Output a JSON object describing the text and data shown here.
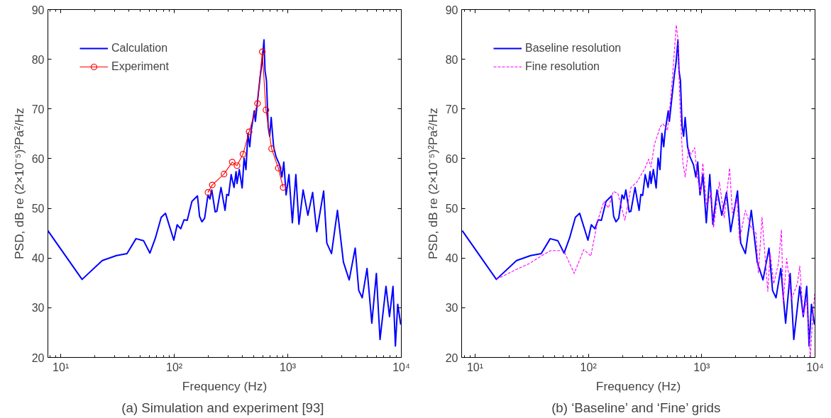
{
  "chart_data": [
    {
      "type": "line",
      "title": "(a)  Simulation and experiment [93]",
      "xlabel": "Frequency (Hz)",
      "ylabel": "PSD, dB re (2×10⁻⁵)²Pa²/Hz",
      "log": "x",
      "grid": false,
      "legend": "top left",
      "xlim": [
        7.7,
        10000
      ],
      "ylim": [
        20,
        90
      ],
      "xticks": [
        {
          "value": 10,
          "label": "10¹"
        },
        {
          "value": 100,
          "label": "10²"
        },
        {
          "value": 1000,
          "label": "10³"
        },
        {
          "value": 10000,
          "label": "10⁴"
        }
      ],
      "yticks": [
        20,
        30,
        40,
        50,
        60,
        70,
        80,
        90
      ],
      "series": [
        {
          "name": "Calculation",
          "color": "#0000ff",
          "marker": "none",
          "line_style": "solid",
          "x": [
            7.7,
            15.4,
            23.2,
            30.9,
            38.3,
            46,
            53.6,
            61,
            68.1,
            76.7,
            83.7,
            99,
            106,
            114,
            122,
            130,
            143,
            160,
            167,
            175,
            185,
            198,
            206,
            214,
            229,
            237,
            258,
            280,
            290,
            301,
            317,
            336,
            350,
            357,
            374,
            396,
            412,
            428,
            445,
            462,
            475,
            506,
            518,
            550,
            572,
            593,
            617,
            630,
            649,
            671,
            692,
            714,
            750,
            787,
            845,
            887,
            922,
            966,
            1024,
            1097,
            1178,
            1253,
            1365,
            1503,
            1655,
            1800,
            2070,
            2207,
            2427,
            2738,
            3090,
            3474,
            3924,
            4217,
            4525,
            4990,
            5500,
            6030,
            6494,
            7330,
            7870,
            8450,
            8870,
            9300,
            9880
          ],
          "values": [
            45.5,
            35.7,
            39.5,
            40.5,
            40.9,
            43.9,
            43.5,
            41,
            44,
            48.2,
            49,
            43.6,
            46.7,
            45.9,
            47.7,
            47.6,
            51.4,
            52.5,
            48.4,
            47.3,
            48,
            52.7,
            51.9,
            53.7,
            49.3,
            49.4,
            54.2,
            49.6,
            52.8,
            52.6,
            56.8,
            54.2,
            57.4,
            55,
            57.8,
            54.1,
            60.1,
            57.8,
            65.1,
            62.4,
            65.5,
            69.6,
            67.5,
            73.1,
            76.7,
            79.3,
            83.9,
            77.7,
            75.7,
            66.5,
            64.5,
            68.3,
            62.4,
            60.4,
            58.8,
            56.3,
            59.3,
            52.7,
            56.8,
            47.1,
            56.8,
            46.8,
            53.7,
            48.6,
            53.2,
            45.3,
            53.5,
            43,
            40.9,
            49.6,
            39.2,
            35.6,
            42,
            33.5,
            32,
            37.9,
            26.9,
            36.9,
            23.6,
            34.3,
            28.2,
            34.3,
            22.3,
            30.7,
            26.6
          ]
        },
        {
          "name": "Experiment",
          "color": "#ff0000",
          "marker": "circle",
          "line_style": "solid",
          "x": [
            198,
            216,
            274,
            324,
            357,
            403,
            456,
            541,
            596,
            642,
            720,
            825,
            910
          ],
          "values": [
            53.2,
            54.7,
            56.9,
            59.3,
            58.6,
            60.9,
            65.4,
            71.1,
            81.5,
            69.8,
            62,
            58.1,
            54.2
          ]
        }
      ]
    },
    {
      "type": "line",
      "title": "(b)  ‘Baseline’ and ‘Fine’ grids",
      "xlabel": "Frequency (Hz)",
      "ylabel": "PSD, dB re (2×10⁻⁵)²Pa²/Hz",
      "log": "x",
      "grid": false,
      "legend": "top left",
      "xlim": [
        7.6,
        10000
      ],
      "ylim": [
        20,
        90
      ],
      "xticks": [
        {
          "value": 10,
          "label": "10¹"
        },
        {
          "value": 100,
          "label": "10²"
        },
        {
          "value": 1000,
          "label": "10³"
        },
        {
          "value": 10000,
          "label": "10⁴"
        }
      ],
      "yticks": [
        20,
        30,
        40,
        50,
        60,
        70,
        80,
        90
      ],
      "series": [
        {
          "name": "Baseline resolution",
          "color": "#0000ff",
          "marker": "none",
          "line_style": "solid",
          "x": [
            7.7,
            15.4,
            23.2,
            30.9,
            38.3,
            46,
            53.6,
            61,
            68.1,
            76.7,
            83.7,
            99,
            106,
            114,
            122,
            130,
            143,
            160,
            167,
            175,
            185,
            198,
            206,
            214,
            229,
            237,
            258,
            280,
            290,
            301,
            317,
            336,
            350,
            357,
            374,
            396,
            412,
            428,
            445,
            462,
            475,
            506,
            518,
            550,
            572,
            593,
            617,
            630,
            649,
            671,
            692,
            714,
            750,
            787,
            845,
            887,
            922,
            966,
            1024,
            1097,
            1178,
            1253,
            1365,
            1503,
            1655,
            1800,
            2070,
            2207,
            2427,
            2738,
            3090,
            3474,
            3924,
            4217,
            4525,
            4990,
            5500,
            6030,
            6494,
            7330,
            7870,
            8450,
            8870,
            9300,
            9880
          ],
          "values": [
            45.5,
            35.7,
            39.5,
            40.5,
            40.9,
            43.9,
            43.5,
            41,
            44,
            48.2,
            49,
            43.6,
            46.7,
            45.9,
            47.7,
            47.6,
            51.4,
            52.5,
            48.4,
            47.3,
            48,
            52.7,
            51.9,
            53.7,
            49.3,
            49.4,
            54.2,
            49.6,
            52.8,
            52.6,
            56.8,
            54.2,
            57.4,
            55,
            57.8,
            54.1,
            60.1,
            57.8,
            65.1,
            62.4,
            65.5,
            69.6,
            67.5,
            73.1,
            76.7,
            79.3,
            83.9,
            77.7,
            75.7,
            66.5,
            64.5,
            68.3,
            62.4,
            60.4,
            58.8,
            56.3,
            59.3,
            52.7,
            56.8,
            47.1,
            56.8,
            46.8,
            53.7,
            48.6,
            53.2,
            45.3,
            53.5,
            43,
            40.9,
            49.6,
            39.2,
            35.6,
            42,
            33.5,
            32,
            37.9,
            26.9,
            36.9,
            23.6,
            34.3,
            28.2,
            34.3,
            22.3,
            30.7,
            26.6
          ]
        },
        {
          "name": "Fine resolution",
          "color": "#ff00ff",
          "marker": "none",
          "line_style": "dashed",
          "x": [
            15.4,
            22.6,
            30.1,
            38.3,
            46.4,
            60.5,
            75,
            90.9,
            105,
            121,
            137,
            150,
            166,
            182,
            210,
            237,
            268,
            316,
            340,
            356,
            383,
            432,
            455,
            499,
            535,
            562,
            596,
            615,
            643,
            681,
            714,
            767,
            806,
            866,
            913,
            977,
            1023,
            1105,
            1212,
            1270,
            1432,
            1578,
            1761,
            1866,
            2054,
            2154,
            2427,
            2738,
            3013,
            3162,
            3404,
            3831,
            4017,
            4315,
            4753,
            5055,
            5234,
            5623,
            6190,
            6977,
            7330,
            7870,
            8450,
            9090,
            9530,
            9930
          ],
          "values": [
            35.7,
            37.6,
            38.9,
            40.4,
            41.5,
            41.5,
            36.9,
            41.7,
            40.4,
            47.6,
            51.4,
            50.1,
            53.4,
            53,
            47.6,
            54.2,
            55.3,
            58.1,
            59.9,
            58.3,
            62.9,
            66.5,
            67,
            65.7,
            72.7,
            78.8,
            86.9,
            84.4,
            70.6,
            59.3,
            56.3,
            61.9,
            60.9,
            62.2,
            56.3,
            53.2,
            59.1,
            50.4,
            53.2,
            46.1,
            55.3,
            48.1,
            58.1,
            49.1,
            51.7,
            43.6,
            49.6,
            46.1,
            45,
            36.9,
            48.2,
            33.3,
            41,
            34.8,
            38.9,
            45.7,
            31,
            39.9,
            31.7,
            34.8,
            38.4,
            28.4,
            31.7,
            20,
            28.2,
            32.8
          ]
        }
      ]
    }
  ]
}
